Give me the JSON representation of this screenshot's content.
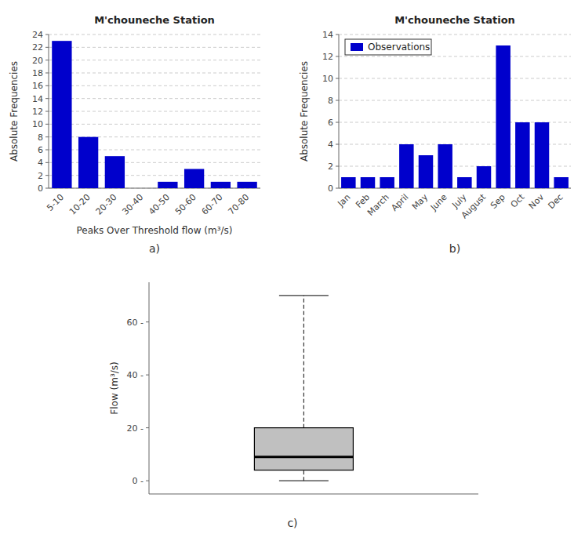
{
  "chart_data": [
    {
      "type": "bar",
      "title": "M'chouneche Station",
      "categories": [
        "5-10",
        "10-20",
        "20-30",
        "30-40",
        "40-50",
        "50-60",
        "60-70",
        "70-80"
      ],
      "values": [
        23,
        8,
        5,
        0,
        1,
        3,
        1,
        1
      ],
      "color": "#0000CC",
      "x_label": "Peaks Over Threshold flow (m³/s)",
      "y_label": "Absolute Frequencies",
      "ylim": [
        0,
        24
      ],
      "yticks": [
        0,
        2,
        4,
        6,
        8,
        10,
        12,
        14,
        16,
        18,
        20,
        22,
        24
      ],
      "grid": true,
      "annotations": [
        "a)"
      ]
    },
    {
      "type": "bar",
      "title": "M'chouneche Station",
      "categories": [
        "Jan",
        "Feb",
        "March",
        "April",
        "May",
        "June",
        "July",
        "August",
        "Sep",
        "Oct",
        "Nov",
        "Dec"
      ],
      "series": [
        {
          "name": "Observations",
          "color": "#0000CC",
          "values": [
            1,
            1,
            1,
            4,
            3,
            4,
            1,
            2,
            13,
            6,
            6,
            1
          ]
        }
      ],
      "y_label": "Absolute Frequencies",
      "ylim": [
        0,
        14
      ],
      "yticks": [
        0,
        2,
        4,
        6,
        8,
        10,
        12,
        14
      ],
      "grid": true,
      "legend": "upper left",
      "annotations": [
        "b)"
      ]
    },
    {
      "type": "box",
      "box": {
        "whisker_min": 0,
        "q1": 4,
        "median": 9,
        "q3": 20,
        "whisker_max": 70
      },
      "color": "#C0C0C0",
      "y_label": "Flow (m³/s)",
      "ylim": [
        -5,
        75
      ],
      "yticks": [
        {
          "value": 0,
          "label": "0 -"
        },
        {
          "value": 20,
          "label": "20 -"
        },
        {
          "value": 40,
          "label": "40 -"
        },
        {
          "value": 60,
          "label": "60 -"
        }
      ],
      "grid": false,
      "tick_labels": "y",
      "annotations": [
        "c)"
      ]
    }
  ]
}
